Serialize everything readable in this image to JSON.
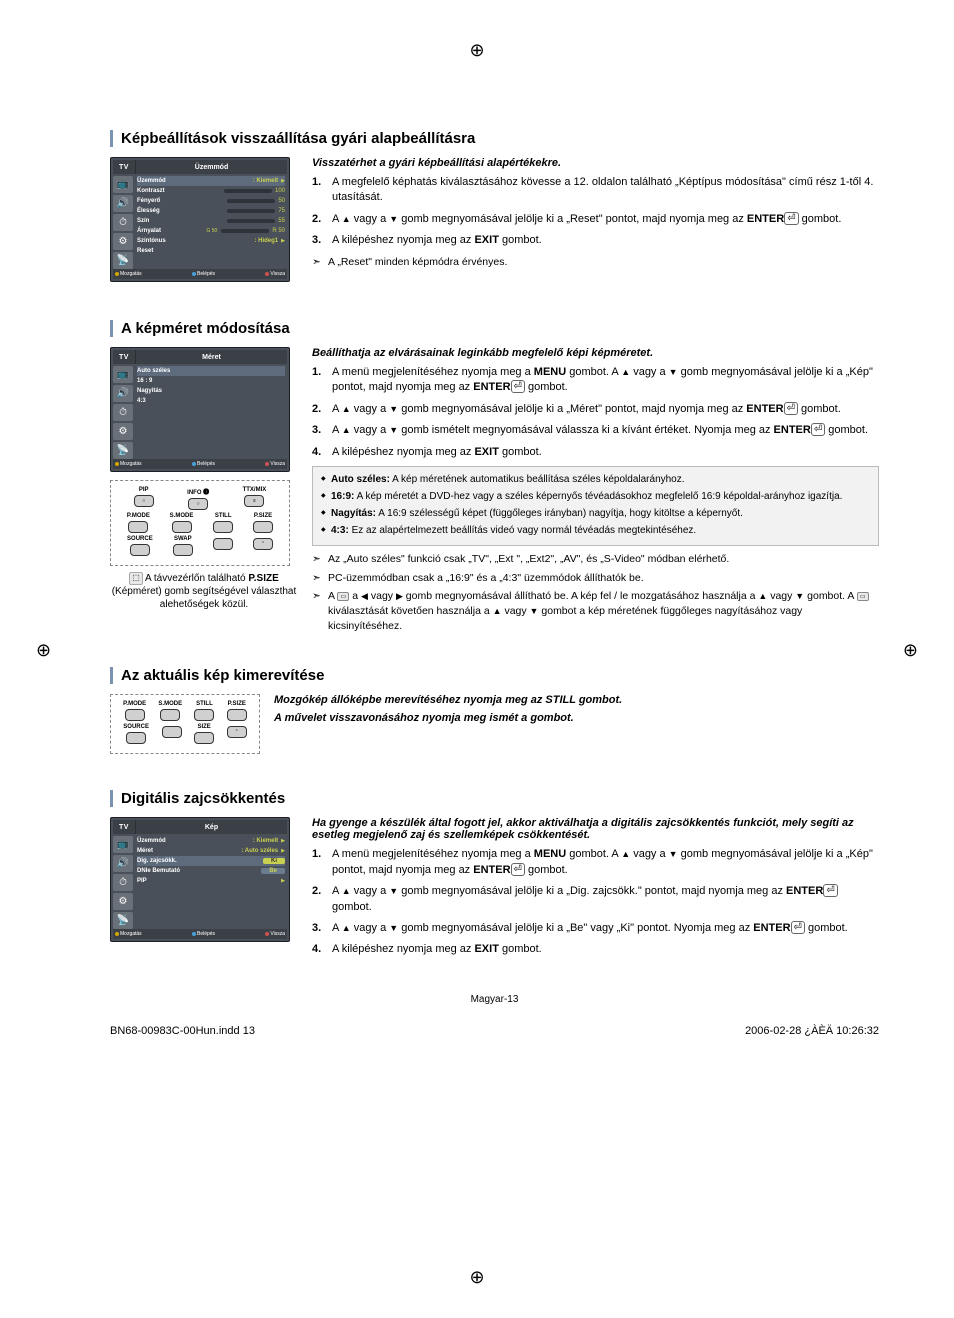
{
  "regMarks": "⊕",
  "section1": {
    "title": "Képbeállítások visszaállítása gyári alapbeállításra",
    "subtitle": "Visszatérhet a gyári képbeállítási alapértékekre.",
    "steps": [
      "A megfelelő képhatás kiválasztásához kövesse a 12. oldalon található „Képtípus módosítása\" című rész 1-től 4. utasítását.",
      "A ▲ vagy a ▼ gomb megnyomásával jelölje ki a „Reset\" pontot, majd nyomja meg az ENTER⏎ gombot.",
      "A kilépéshez nyomja meg az EXIT gombot."
    ],
    "note": "A „Reset\" minden képmódra érvényes.",
    "tv": {
      "titleLeft": "TV",
      "titleRight": "Üzemmód",
      "rows": [
        {
          "label": "Üzemmód",
          "value": ": Kiemelt",
          "sel": true,
          "arrow": true
        },
        {
          "label": "Kontraszt",
          "bar": 100,
          "barVal": "100"
        },
        {
          "label": "Fényerő",
          "bar": 50,
          "barVal": "50"
        },
        {
          "label": "Élesség",
          "bar": 75,
          "barVal": "75"
        },
        {
          "label": "Szín",
          "bar": 55,
          "barVal": "55"
        },
        {
          "label": "Árnyalat",
          "bar": 50,
          "barVal": "R 50",
          "barPrefix": "G 50"
        },
        {
          "label": "Színtónus",
          "value": ": Hideg1",
          "arrow": true
        },
        {
          "label": "Reset"
        }
      ],
      "footer": {
        "mozg": "Mozgatás",
        "belep": "Belépés",
        "vissza": "Vissza"
      }
    }
  },
  "section2": {
    "title": "A képméret módosítása",
    "subtitle": "Beállíthatja az elvárásainak leginkább megfelelő képi képméretet.",
    "steps": [
      "A menü megjelenítéséhez nyomja meg a MENU gombot. A ▲ vagy a ▼ gomb megnyomásával jelölje ki a „Kép\" pontot, majd nyomja meg az ENTER⏎ gombot.",
      "A ▲ vagy a ▼ gomb megnyomásával jelölje ki a „Méret\" pontot, majd nyomja meg az ENTER⏎ gombot.",
      "A ▲ vagy a ▼ gomb ismételt megnyomásával válassza ki a kívánt értéket. Nyomja meg az ENTER⏎ gombot.",
      "A kilépéshez nyomja meg az EXIT gombot."
    ],
    "tv": {
      "titleLeft": "TV",
      "titleRight": "Méret",
      "rows": [
        {
          "label": "Auto széles",
          "sel": true
        },
        {
          "label": "16 : 9"
        },
        {
          "label": "Nagyítás"
        },
        {
          "label": "4:3"
        }
      ],
      "footer": {
        "mozg": "Mozgatás",
        "belep": "Belépés",
        "vissza": "Vissza"
      }
    },
    "remote": {
      "row1": [
        {
          "lbl": "PIP",
          "btn": "○"
        },
        {
          "lbl": "INFO 🅘",
          "btn": "○"
        },
        {
          "lbl": "TTX/MIX",
          "btn": "≡"
        }
      ],
      "row2": [
        {
          "lbl": "P.MODE",
          "btn": ""
        },
        {
          "lbl": "S.MODE",
          "btn": ""
        },
        {
          "lbl": "STILL",
          "btn": ""
        },
        {
          "lbl": "P.SIZE",
          "btn": ""
        }
      ],
      "row3": [
        {
          "lbl": "SOURCE",
          "btn": ""
        },
        {
          "lbl": "SWAP",
          "btn": ""
        },
        {
          "lbl": "",
          "btn": ""
        },
        {
          "lbl": "",
          "btn": "⌃"
        }
      ]
    },
    "caption": "A távvezérlőn található P.SIZE (Képméret) gomb segítségével választhat alehetőségek közül.",
    "psizeBadge": "⬚",
    "infoItems": [
      {
        "term": "Auto széles:",
        "desc": "A kép méretének automatikus beállítása széles képoldalarányhoz."
      },
      {
        "term": "16:9:",
        "desc": "A kép méretét a DVD-hez vagy a széles képernyős tévéadásokhoz megfelelő 16:9 képoldal-arányhoz igazítja."
      },
      {
        "term": "Nagyítás:",
        "desc": "A 16:9 szélességű képet (függőleges irányban) nagyítja, hogy kitöltse a képernyőt."
      },
      {
        "term": "4:3:",
        "desc": "Ez az alapértelmezett beállítás videó vagy normál tévéadás megtekintéséhez."
      }
    ],
    "notes": [
      "Az „Auto széles\" funkció csak „TV\", „Ext \", „Ext2\", „AV\", és „S-Video\" módban elérhető.",
      "PC-üzemmódban csak a „16:9\" és a „4:3\" üzemmódok állíthatók be.",
      "A ⬚ a ◀ vagy ▶ gomb megnyomásával állítható be. A kép fel / le mozgatásához használja a ▲ vagy ▼ gombot. A ⬚ kiválasztását követően használja a ▲ vagy ▼ gombot a kép méretének függőleges nagyításához vagy kicsinyítéséhez."
    ]
  },
  "section3": {
    "title": "Az aktuális kép kimerevítése",
    "subtitle1": "Mozgókép állóképbe merevítéséhez nyomja meg az STILL gombot.",
    "subtitle2": "A művelet visszavonásához nyomja meg ismét a gombot.",
    "remote": {
      "row1": [
        {
          "lbl": "P.MODE",
          "btn": ""
        },
        {
          "lbl": "S.MODE",
          "btn": ""
        },
        {
          "lbl": "STILL",
          "btn": ""
        },
        {
          "lbl": "P.SIZE",
          "btn": ""
        }
      ],
      "row2": [
        {
          "lbl": "SOURCE",
          "btn": ""
        },
        {
          "lbl": "",
          "btn": ""
        },
        {
          "lbl": "SIZE",
          "btn": ""
        },
        {
          "lbl": "",
          "btn": "⌃"
        }
      ]
    }
  },
  "section4": {
    "title": "Digitális zajcsökkentés",
    "subtitle": "Ha gyenge a készülék által fogott jel, akkor aktiválhatja a digitális zajcsökkentés funkciót, mely segíti az esetleg megjelenő zaj és szellemképek csökkentését.",
    "steps": [
      "A menü megjelenítéséhez nyomja meg a MENU gombot. A ▲ vagy a ▼ gomb megnyomásával jelölje ki a „Kép\" pontot, majd nyomja meg az ENTER⏎ gombot.",
      "A ▲ vagy a ▼ gomb megnyomásával jelölje ki a „Dig. zajcsökk.\" pontot, majd nyomja meg az ENTER⏎ gombot.",
      "A ▲ vagy a ▼ gomb megnyomásával jelölje ki a „Be\" vagy „Ki\" pontot. Nyomja meg az ENTER⏎ gombot.",
      "A kilépéshez nyomja meg az EXIT gombot."
    ],
    "tv": {
      "titleLeft": "TV",
      "titleRight": "Kép",
      "rows": [
        {
          "label": "Üzemmód",
          "value": ": Kiemelt",
          "arrow": true
        },
        {
          "label": "Méret",
          "value": ": Auto széles",
          "arrow": true
        },
        {
          "label": "Dig. zajcsökk.",
          "value": "Ki",
          "sel": true,
          "chip": true
        },
        {
          "label": "DNIe Bemutató",
          "value": "Be",
          "chip": true,
          "chipColor": "#6b7c8e"
        },
        {
          "label": "PIP",
          "arrow": true
        }
      ],
      "footer": {
        "mozg": "Mozgatás",
        "belep": "Belépés",
        "vissza": "Vissza"
      }
    }
  },
  "pageNum": "Magyar-13",
  "footerLeft": "BN68-00983C-00Hun.indd   13",
  "footerRight": "2006-02-28   ¿ÀÈÄ 10:26:32"
}
